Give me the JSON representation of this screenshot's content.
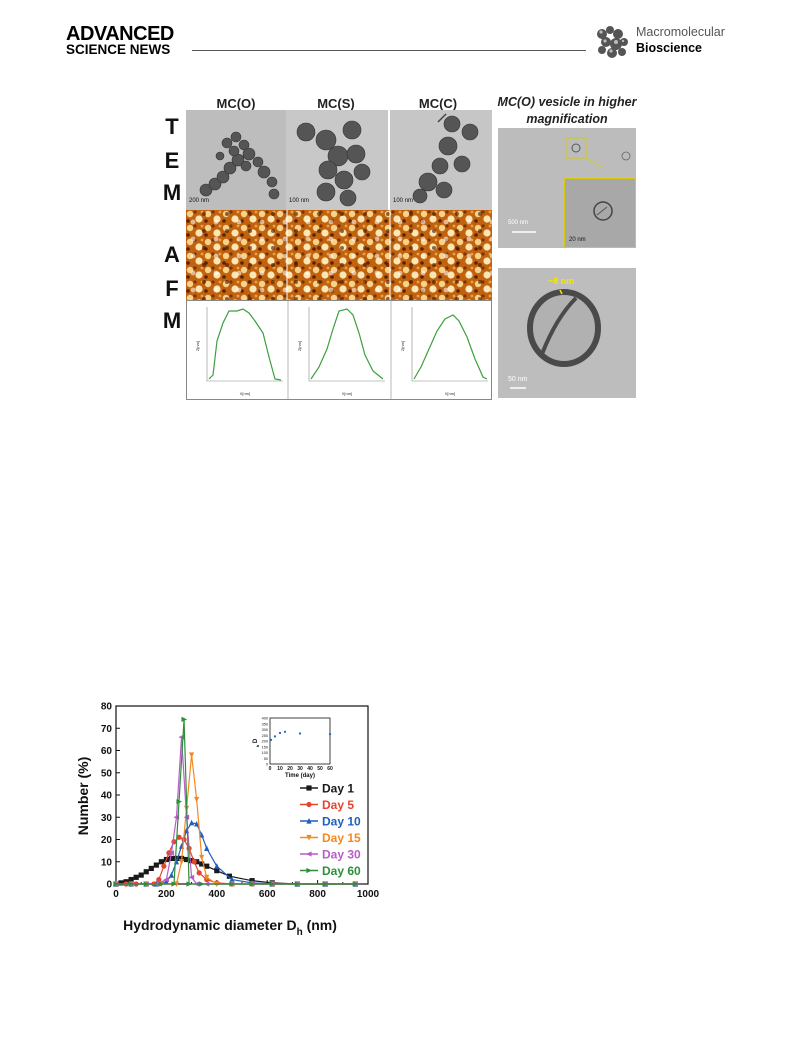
{
  "header": {
    "brand_top": "ADVANCED",
    "brand_bottom": "SCIENCE NEWS",
    "journal_line1": "Macromolecular",
    "journal_line2": "Bioscience"
  },
  "figure1": {
    "col_titles": [
      "MC(O)",
      "MC(S)",
      "MC(C)"
    ],
    "vesicle_title_line1": "MC(O) vesicle in higher",
    "vesicle_title_line2": "magnification",
    "side_letters": [
      "T",
      "E",
      "M",
      "A",
      "F",
      "M"
    ],
    "tem_scales": [
      "200 nm",
      "100 nm",
      "100 nm"
    ],
    "vesicle_scales": [
      "500 nm",
      "20 nm",
      "50 nm"
    ],
    "thickness_label": "~8 nm",
    "profile_x_label": "X[nm]",
    "profile_y_label": "Z[nm]"
  },
  "chart_data": {
    "type": "line",
    "xlabel": "Hydrodynamic diameter D",
    "xlabel_sub": "h",
    "xlabel_unit": " (nm)",
    "ylabel": "Number (%)",
    "xlim": [
      0,
      1000
    ],
    "ylim": [
      0,
      80
    ],
    "xticks": [
      0,
      200,
      400,
      600,
      800,
      1000
    ],
    "yticks": [
      0,
      10,
      20,
      30,
      40,
      50,
      60,
      70,
      80
    ],
    "legend_position": "right",
    "series": [
      {
        "name": "Day 1",
        "color": "#1a1a1a",
        "marker": "square",
        "x": [
          0,
          20,
          40,
          60,
          80,
          100,
          120,
          140,
          160,
          180,
          200,
          220,
          240,
          260,
          280,
          300,
          320,
          340,
          360,
          400,
          450,
          540,
          620,
          720,
          830,
          950
        ],
        "y": [
          0,
          0.5,
          1,
          2,
          3,
          4,
          5.5,
          7,
          8.5,
          10,
          11,
          11.5,
          11.5,
          11.5,
          11,
          10.5,
          10,
          9,
          8,
          6,
          3.5,
          1.5,
          0.5,
          0,
          0,
          0
        ]
      },
      {
        "name": "Day 5",
        "color": "#e8432c",
        "marker": "circle",
        "x": [
          0,
          40,
          80,
          120,
          150,
          170,
          190,
          210,
          230,
          250,
          270,
          290,
          310,
          330,
          360,
          400,
          460,
          540,
          620,
          720,
          830,
          950
        ],
        "y": [
          0,
          0,
          0,
          0,
          0,
          2,
          8,
          14,
          19,
          21,
          20,
          16,
          10,
          5,
          2,
          0.5,
          0,
          0,
          0,
          0,
          0,
          0
        ]
      },
      {
        "name": "Day 10",
        "color": "#1f5fbf",
        "marker": "triangle-up",
        "x": [
          0,
          60,
          120,
          160,
          200,
          220,
          240,
          260,
          280,
          300,
          320,
          340,
          360,
          400,
          460,
          540,
          620,
          720,
          830,
          950
        ],
        "y": [
          0,
          0,
          0,
          0,
          1,
          4,
          10,
          17,
          24,
          27.5,
          27,
          22,
          16,
          8,
          2,
          0.5,
          0,
          0,
          0,
          0
        ]
      },
      {
        "name": "Day 15",
        "color": "#f5891f",
        "marker": "triangle-down",
        "x": [
          0,
          60,
          120,
          180,
          240,
          260,
          280,
          300,
          320,
          340,
          360,
          400,
          460,
          540,
          620,
          720,
          830,
          950
        ],
        "y": [
          0,
          0,
          0,
          0,
          0,
          10,
          34,
          58,
          38,
          12,
          3,
          0,
          0,
          0,
          0,
          0,
          0,
          0
        ]
      },
      {
        "name": "Day 30",
        "color": "#b85dc8",
        "marker": "triangle-left",
        "x": [
          0,
          60,
          120,
          160,
          200,
          220,
          240,
          260,
          280,
          300,
          320,
          360,
          460,
          540,
          620,
          720,
          830,
          950
        ],
        "y": [
          0,
          0,
          0,
          0,
          2,
          14,
          30,
          66,
          30,
          3,
          0,
          0,
          0,
          0,
          0,
          0,
          0,
          0
        ]
      },
      {
        "name": "Day 60",
        "color": "#2e8f3a",
        "marker": "triangle-right",
        "x": [
          0,
          60,
          120,
          180,
          230,
          250,
          270,
          290,
          340,
          460,
          540,
          620,
          720,
          830,
          950
        ],
        "y": [
          0,
          0,
          0,
          0,
          0,
          37,
          74,
          0,
          0,
          0,
          0,
          0,
          0,
          0,
          0
        ]
      }
    ],
    "inset": {
      "xlabel": "Time (day)",
      "ylabel": "D",
      "ylabel_sub": "h",
      "xlim": [
        0,
        60
      ],
      "ylim": [
        0,
        400
      ],
      "xticks": [
        0,
        10,
        20,
        30,
        40,
        50,
        60
      ],
      "yticks": [
        0,
        50,
        100,
        150,
        200,
        250,
        300,
        350,
        400
      ],
      "color": "#1f5fbf",
      "x": [
        1,
        5,
        10,
        15,
        30,
        60
      ],
      "y": [
        210,
        240,
        270,
        280,
        265,
        260
      ]
    }
  }
}
